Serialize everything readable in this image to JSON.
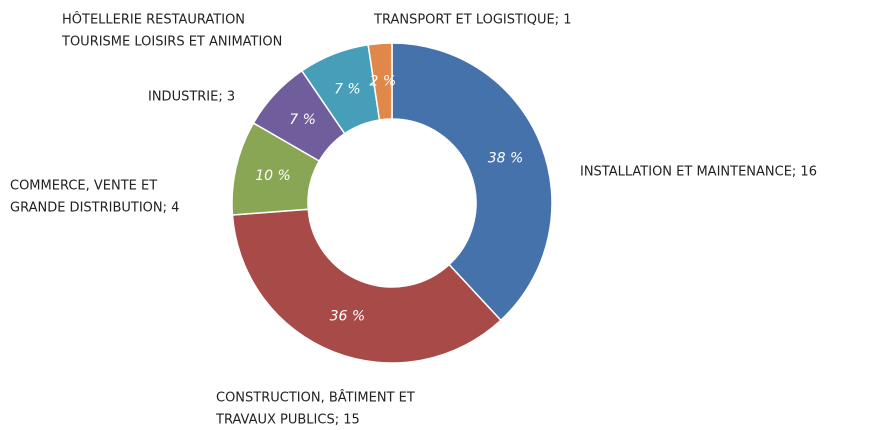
{
  "chart_data": {
    "type": "donut",
    "labels": [
      [
        "INSTALLATION ET MAINTENANCE; 16"
      ],
      [
        "CONSTRUCTION, BÂTIMENT ET",
        "TRAVAUX PUBLICS; 15"
      ],
      [
        "COMMERCE, VENTE ET",
        "GRANDE DISTRIBUTION; 4"
      ],
      [
        "INDUSTRIE; 3"
      ],
      [
        "HÔTELLERIE RESTAURATION",
        "TOURISME LOISIRS ET ANIMATION"
      ],
      [
        "TRANSPORT ET LOGISTIQUE; 1"
      ]
    ],
    "values": [
      16,
      15,
      4,
      3,
      3,
      1
    ],
    "value_labels": [
      "38 %",
      "36 %",
      "10 %",
      "7 %",
      "7 %",
      "2 %"
    ],
    "colors": [
      "#4672ab",
      "#a74a48",
      "#89a655",
      "#6f5d9c",
      "#479eb9",
      "#e0884a"
    ]
  }
}
